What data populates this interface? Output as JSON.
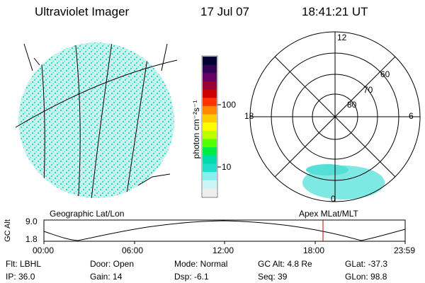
{
  "header": {
    "instrument": "Ultraviolet Imager",
    "date": "17 Jul 07",
    "time": "18:41:21 UT"
  },
  "colorbar": {
    "unit_label": "photon cm⁻²s⁻¹",
    "ticks": [
      "100",
      "10"
    ],
    "colors": [
      "#000033",
      "#330055",
      "#660066",
      "#990033",
      "#cc0000",
      "#ff3300",
      "#ff8800",
      "#ffcc00",
      "#ffff00",
      "#bbff00",
      "#55ff00",
      "#00ee44",
      "#00ddaa",
      "#22ddcc",
      "#88eeee",
      "#ccf5f5",
      "#eeeeee"
    ]
  },
  "polar": {
    "labels": {
      "top": "12",
      "left": "18",
      "right": "6",
      "bottom": "0"
    },
    "ring_labels": [
      "60",
      "70",
      "80"
    ]
  },
  "timeline": {
    "left_label": "Geographic Lat/Lon",
    "right_label": "Apex  MLat/MLT",
    "y_axis_label": "GC Alt",
    "y_ticks": [
      "9.0",
      "1.8"
    ],
    "x_ticks": [
      "00:00",
      "06:00",
      "12:00",
      "18:00",
      "23:59"
    ]
  },
  "info": {
    "flt": "Flt: LBHL",
    "door": "Door: Open",
    "mode": "Mode: Normal",
    "gc_alt": "GC Alt: 4.8 Re",
    "glat": "GLat: -37.3",
    "ip": "IP: 36.0",
    "gain": "Gain: 14",
    "dsp": "Dsp:   -6.1",
    "seq": "Seq: 39",
    "glon": "GLon:  98.8"
  }
}
